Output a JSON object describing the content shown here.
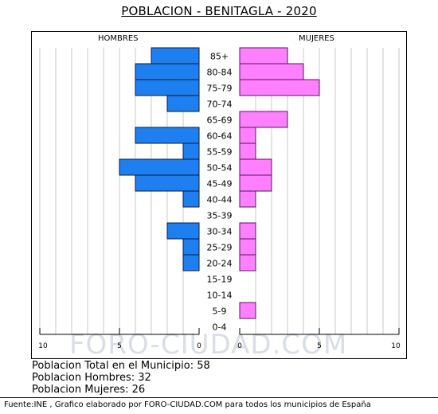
{
  "title": "POBLACION - BENITAGLA - 2020",
  "labels": {
    "men": "HOMBRES",
    "women": "MUJERES"
  },
  "chart_data": {
    "type": "bar",
    "orientation": "horizontal",
    "categories": [
      "85+",
      "80-84",
      "75-79",
      "70-74",
      "65-69",
      "60-64",
      "55-59",
      "50-54",
      "45-49",
      "40-44",
      "35-39",
      "30-34",
      "25-29",
      "20-24",
      "15-19",
      "10-14",
      "5-9",
      "0-4"
    ],
    "series": [
      {
        "name": "HOMBRES",
        "values": [
          3,
          4,
          4,
          2,
          0,
          4,
          1,
          5,
          4,
          1,
          0,
          2,
          1,
          1,
          0,
          0,
          0,
          0
        ]
      },
      {
        "name": "MUJERES",
        "values": [
          3,
          4,
          5,
          0,
          3,
          1,
          1,
          2,
          2,
          1,
          0,
          1,
          1,
          1,
          0,
          0,
          1,
          0
        ]
      }
    ],
    "xlim": [
      0,
      10
    ],
    "ticks": [
      "10",
      "5",
      "0",
      "0",
      "5",
      "10"
    ],
    "colors": {
      "men": "#1e7ff0",
      "women": "#ff80ff",
      "grid": "#c8c8c8"
    }
  },
  "watermark": "FORO-CIUDAD.COM",
  "stats": {
    "total": "Poblacion Total en el Municipio: 58",
    "men": "Poblacion Hombres: 32",
    "women": "Poblacion Mujeres: 26"
  },
  "footer": "Fuente:INE , Grafico elaborado por FORO-CIUDAD.COM para todos los municipios de España"
}
